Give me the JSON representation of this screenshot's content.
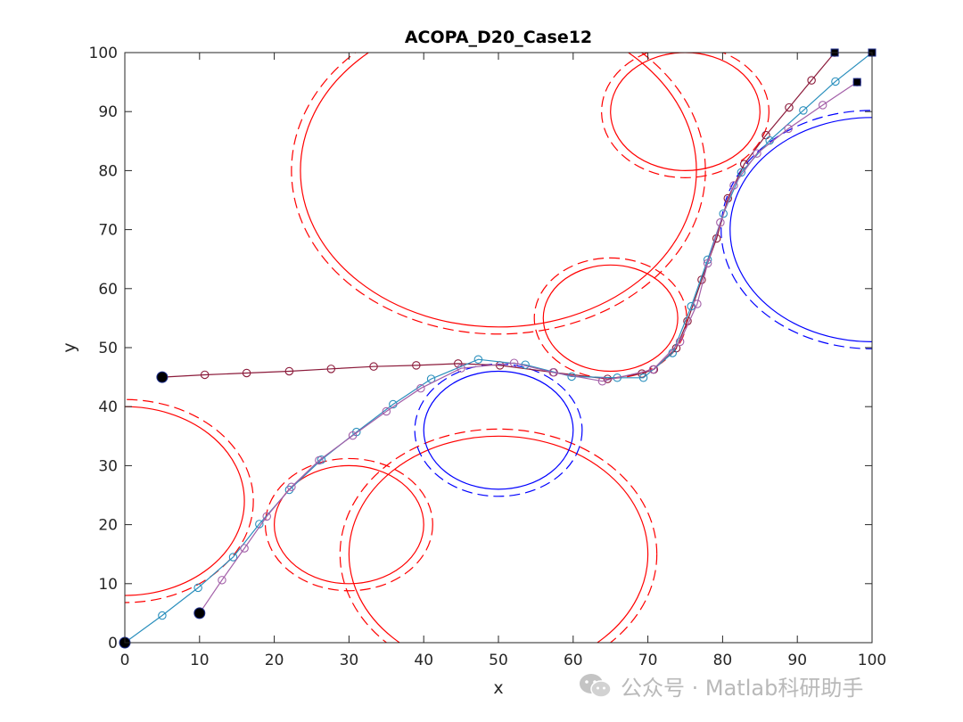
{
  "chart_data": {
    "type": "line",
    "title": "ACOPA_D20_Case12",
    "xlabel": "x",
    "ylabel": "y",
    "xlim": [
      0,
      100
    ],
    "ylim": [
      0,
      100
    ],
    "xticks": [
      0,
      10,
      20,
      30,
      40,
      50,
      60,
      70,
      80,
      90,
      100
    ],
    "yticks": [
      0,
      10,
      20,
      30,
      40,
      50,
      60,
      70,
      80,
      90,
      100
    ],
    "grid": false,
    "obstacles": [
      {
        "color": "#ff0000",
        "cx": 50,
        "cy": 80,
        "r": 26.5,
        "margin": 1.2
      },
      {
        "color": "#ff0000",
        "cx": 75,
        "cy": 90,
        "r": 10,
        "margin": 1.2
      },
      {
        "color": "#ff0000",
        "cx": 65,
        "cy": 55,
        "r": 9,
        "margin": 1.2
      },
      {
        "color": "#ff0000",
        "cx": 0,
        "cy": 24,
        "r": 16,
        "margin": 1.2
      },
      {
        "color": "#ff0000",
        "cx": 30,
        "cy": 20,
        "r": 10,
        "margin": 1.2
      },
      {
        "color": "#ff0000",
        "cx": 50,
        "cy": 15,
        "r": 20,
        "margin": 1.2
      },
      {
        "color": "#0000ff",
        "cx": 50,
        "cy": 36,
        "r": 10,
        "margin": 1.2
      },
      {
        "color": "#0000ff",
        "cx": 100,
        "cy": 70,
        "r": 19,
        "margin": 1.2
      }
    ],
    "series": [
      {
        "color": "#8b1a3a",
        "start": [
          5,
          45
        ],
        "goal": [
          95,
          100
        ],
        "x": [
          5,
          10.7,
          16.3,
          22,
          27.6,
          33.3,
          39,
          44.6,
          50.2,
          57.4,
          64.6,
          69.2,
          70.8,
          73.8,
          75.3,
          77.2,
          79.2,
          80.7,
          82.9,
          85.8,
          88.9,
          91.9,
          95
        ],
        "y": [
          45,
          45.4,
          45.7,
          46,
          46.4,
          46.8,
          47,
          47.3,
          47,
          45.8,
          44.7,
          45.6,
          46.3,
          49.9,
          54.5,
          61.5,
          68.5,
          75.3,
          81.1,
          86,
          90.7,
          95.3,
          100
        ]
      },
      {
        "color": "#2a8fbd",
        "start": [
          0,
          0
        ],
        "goal": [
          100,
          100
        ],
        "x": [
          0,
          5,
          9.8,
          14.5,
          18,
          22,
          26.3,
          31,
          35.9,
          41,
          47.3,
          53.6,
          59.8,
          65.9,
          69.4,
          73.3,
          75.8,
          78,
          80.1,
          82.5,
          86.3,
          90.8,
          95.1,
          100
        ],
        "y": [
          0,
          4.6,
          9.3,
          14.5,
          20.1,
          25.9,
          31,
          35.7,
          40.4,
          44.7,
          48,
          47.1,
          45.1,
          44.9,
          44.9,
          49.1,
          57,
          64.9,
          72.7,
          79.7,
          85.1,
          90.2,
          95.1,
          100
        ]
      },
      {
        "color": "#a35fa8",
        "start": [
          10,
          5
        ],
        "goal": [
          98,
          95
        ],
        "x": [
          10,
          13,
          16,
          19,
          22.3,
          26,
          30.5,
          35,
          39.6,
          45,
          52.1,
          57.3,
          63.9,
          70.7,
          74.3,
          76.6,
          78,
          79.7,
          81.5,
          84.6,
          88.8,
          93.4,
          98
        ],
        "y": [
          5,
          10.6,
          16,
          21.4,
          26.4,
          30.9,
          35.1,
          39.2,
          43.1,
          46.5,
          47.4,
          45.8,
          44.3,
          46.3,
          51,
          57.4,
          64.3,
          71.2,
          77.5,
          82.9,
          87.1,
          91.1,
          95
        ]
      }
    ]
  },
  "watermark": {
    "logo_icon": "wechat-icon",
    "text": "公众号 · Matlab科研助手"
  }
}
